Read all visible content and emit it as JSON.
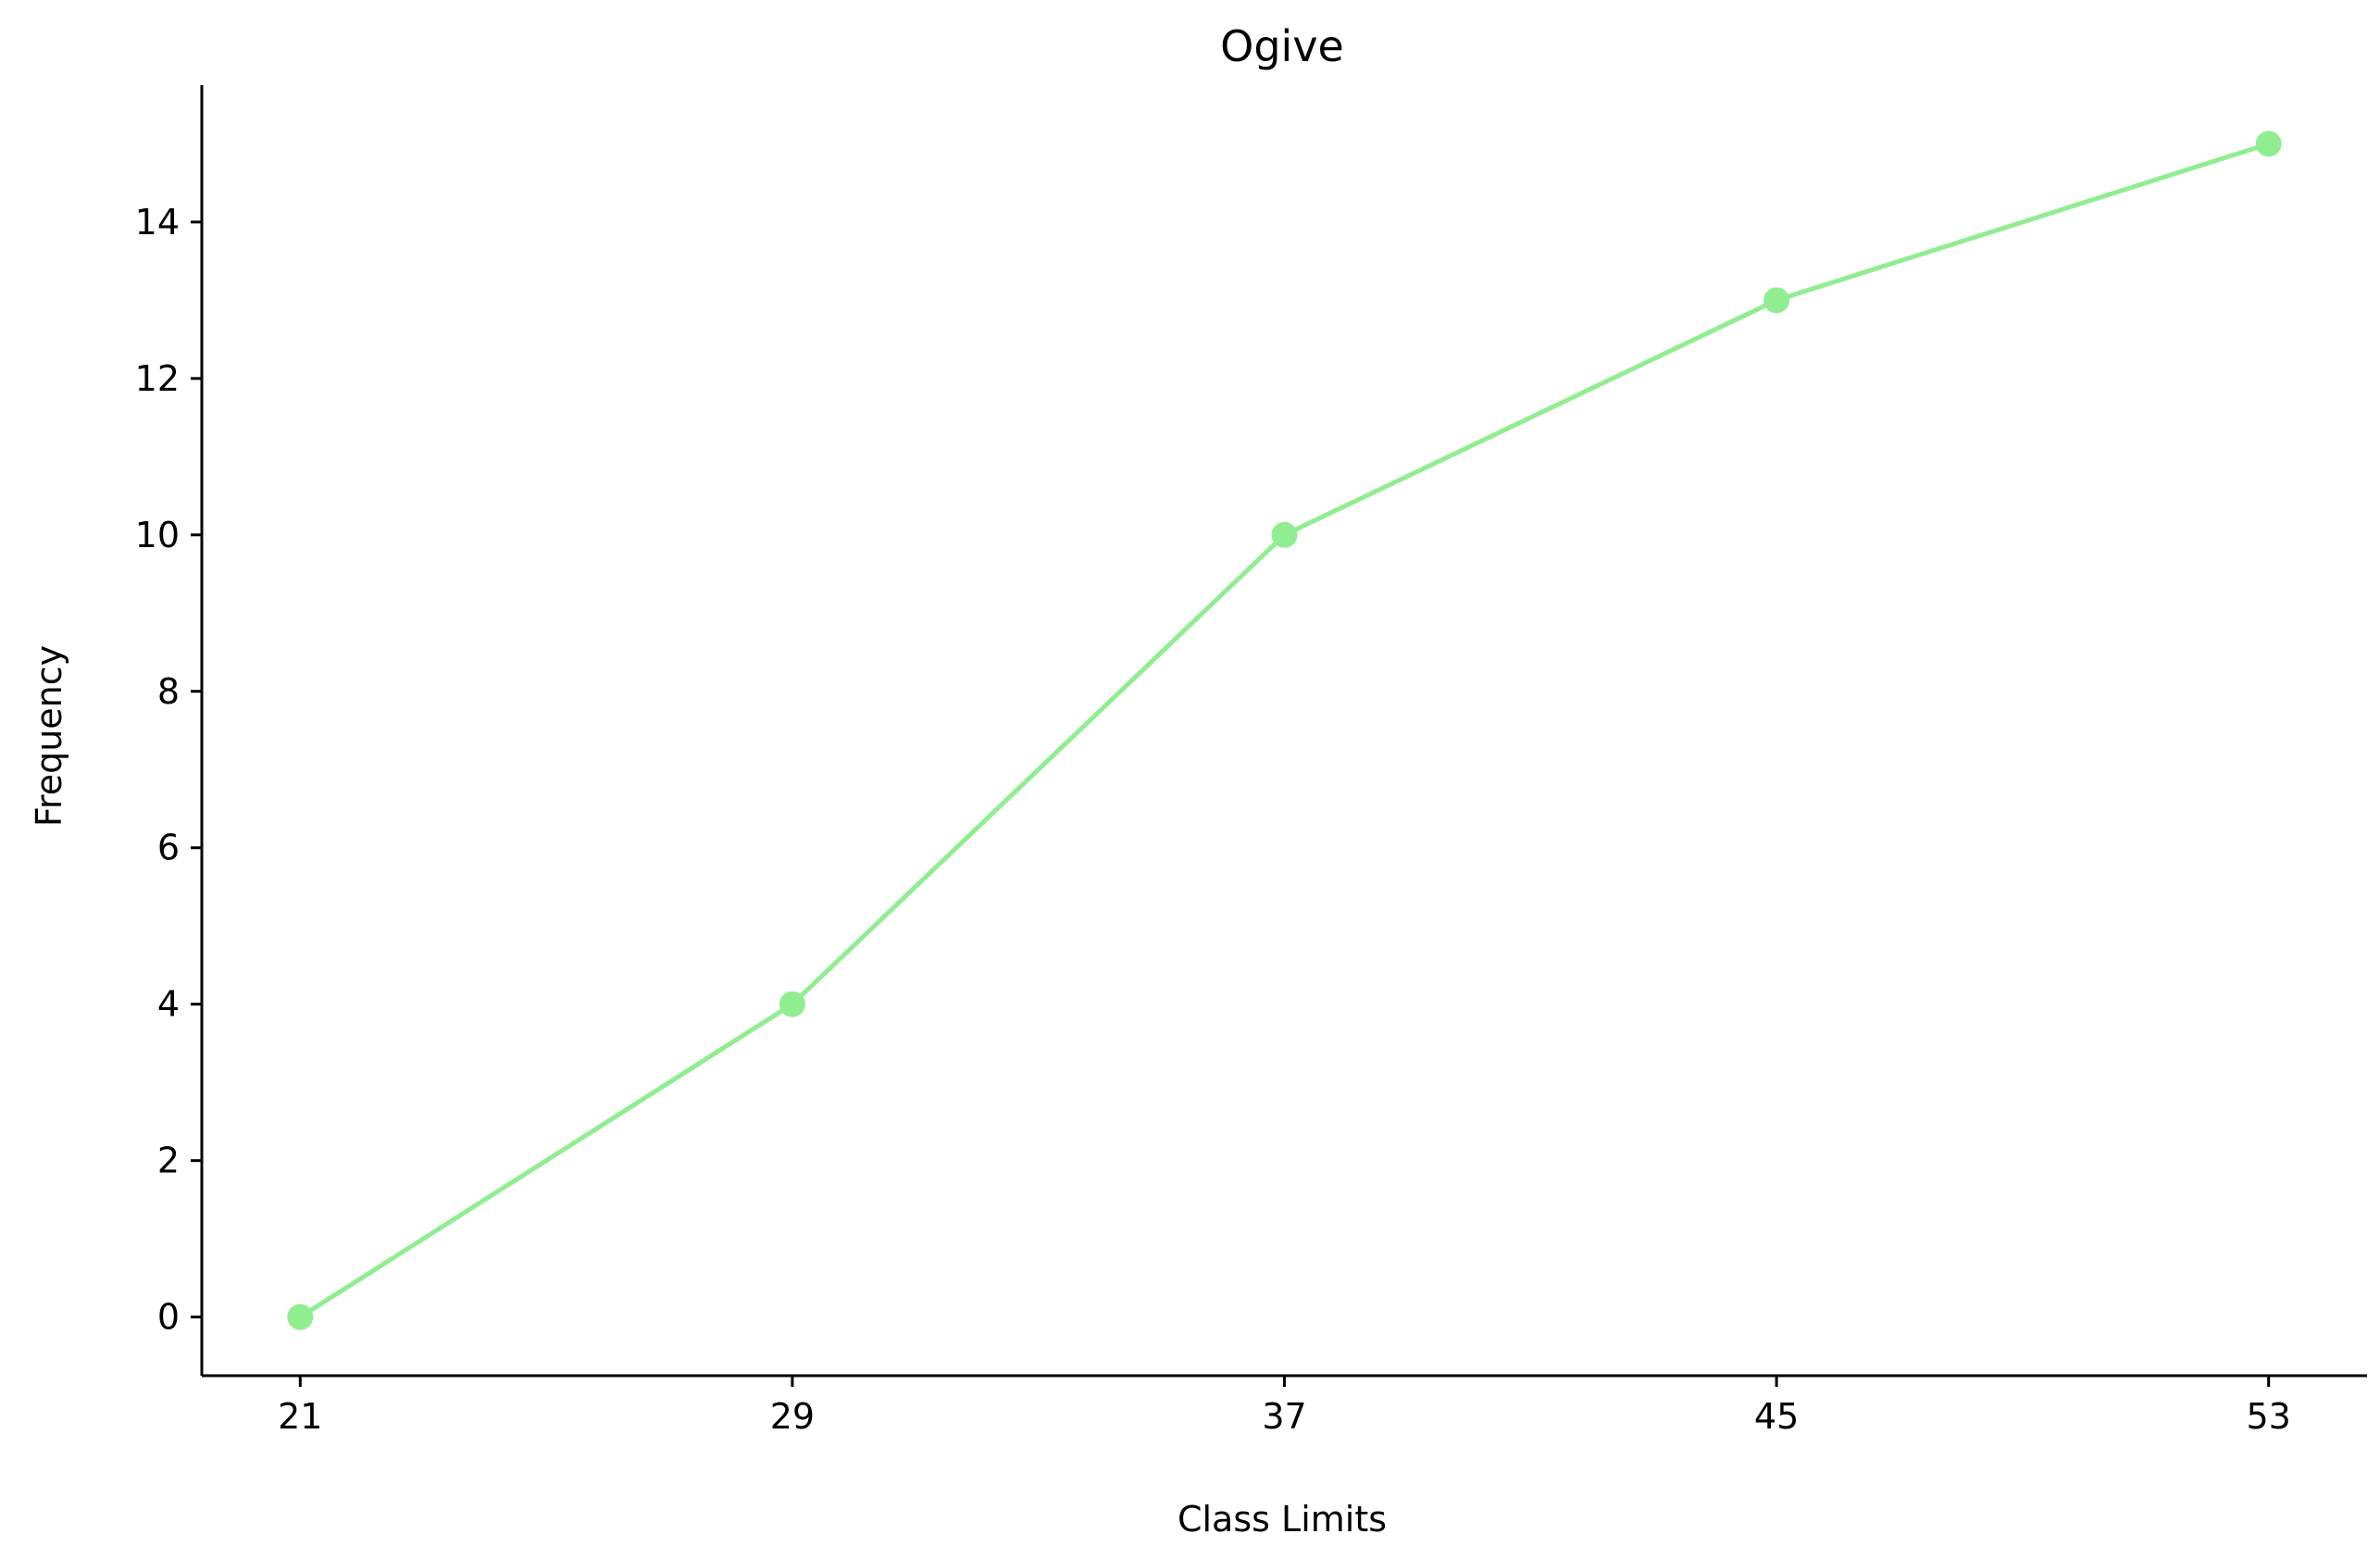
{
  "chart_data": {
    "type": "line",
    "title": "Ogive",
    "xlabel": "Class Limits",
    "ylabel": "Frequency",
    "x": [
      21,
      29,
      37,
      45,
      53
    ],
    "x_tick_labels": [
      "21",
      "29",
      "37",
      "45",
      "53"
    ],
    "series": [
      {
        "values": [
          0,
          4,
          10,
          13,
          15
        ],
        "color": "#90ee90",
        "marker": "circle"
      }
    ],
    "ylim": [
      -0.75,
      15.75
    ],
    "xlim": [
      19.4,
      54.6
    ],
    "y_ticks": [
      0,
      2,
      4,
      6,
      8,
      10,
      12,
      14
    ],
    "y_tick_labels": [
      "0",
      "2",
      "4",
      "6",
      "8",
      "10",
      "12",
      "14"
    ],
    "grid": false,
    "legend": "none",
    "axes_color": "#000000"
  }
}
